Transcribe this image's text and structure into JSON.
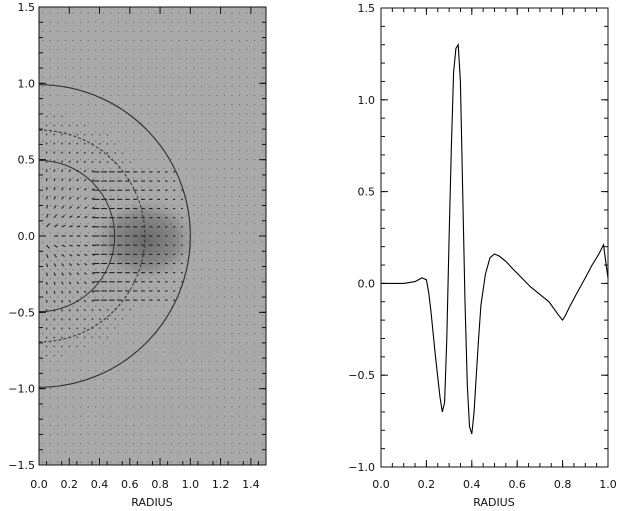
{
  "chart_data": [
    {
      "type": "vector-field",
      "xlabel": "RADIUS",
      "ylabel": "",
      "xlim": [
        0.0,
        1.5
      ],
      "ylim": [
        -1.5,
        1.5
      ],
      "x_ticks": [
        "0.0",
        "0.2",
        "0.4",
        "0.6",
        "0.8",
        "1.0",
        "1.2",
        "1.4"
      ],
      "y_ticks": [
        "1.5",
        "1.0",
        "0.5",
        "0.0",
        "-0.5",
        "-1.0",
        "-1.5"
      ],
      "circles": [
        {
          "radius": 1.0
        },
        {
          "radius": 0.5
        },
        {
          "radius": 0.7
        }
      ],
      "background": "grayscale shaded field with darker region near r=0.5",
      "arrows": "horizontal vectors pointing inward between r≈0.35 and r≈1.0 for |y|<0.5, fanning outward at larger |y|",
      "grid": false
    },
    {
      "type": "line",
      "xlabel": "RADIUS",
      "ylabel": "",
      "xlim": [
        0.0,
        1.0
      ],
      "ylim": [
        -1.0,
        1.5
      ],
      "x_ticks": [
        "0.0",
        "0.2",
        "0.4",
        "0.6",
        "0.8",
        "1.0"
      ],
      "y_ticks": [
        "1.5",
        "1.0",
        "0.5",
        "0.0",
        "-0.5",
        "-1.0"
      ],
      "grid": false,
      "series": [
        {
          "x": [
            0.0,
            0.05,
            0.1,
            0.15,
            0.18,
            0.2,
            0.21,
            0.22,
            0.24,
            0.26,
            0.27,
            0.28,
            0.29,
            0.3,
            0.31,
            0.32,
            0.33,
            0.34,
            0.35,
            0.36,
            0.37,
            0.38,
            0.39,
            0.4,
            0.41,
            0.42,
            0.43,
            0.44,
            0.46,
            0.48,
            0.5,
            0.52,
            0.55,
            0.58,
            0.62,
            0.66,
            0.7,
            0.74,
            0.78,
            0.8,
            0.81,
            0.83,
            0.86,
            0.9,
            0.93,
            0.96,
            0.98,
            0.99,
            1.0
          ],
          "y": [
            0.0,
            0.0,
            0.0,
            0.01,
            0.03,
            0.02,
            -0.05,
            -0.15,
            -0.4,
            -0.62,
            -0.7,
            -0.65,
            -0.3,
            0.25,
            0.75,
            1.15,
            1.28,
            1.3,
            1.1,
            0.5,
            -0.1,
            -0.55,
            -0.78,
            -0.82,
            -0.7,
            -0.5,
            -0.3,
            -0.12,
            0.05,
            0.14,
            0.16,
            0.15,
            0.12,
            0.08,
            0.03,
            -0.02,
            -0.06,
            -0.1,
            -0.17,
            -0.2,
            -0.18,
            -0.13,
            -0.06,
            0.03,
            0.1,
            0.16,
            0.21,
            0.12,
            0.03
          ]
        }
      ]
    }
  ]
}
